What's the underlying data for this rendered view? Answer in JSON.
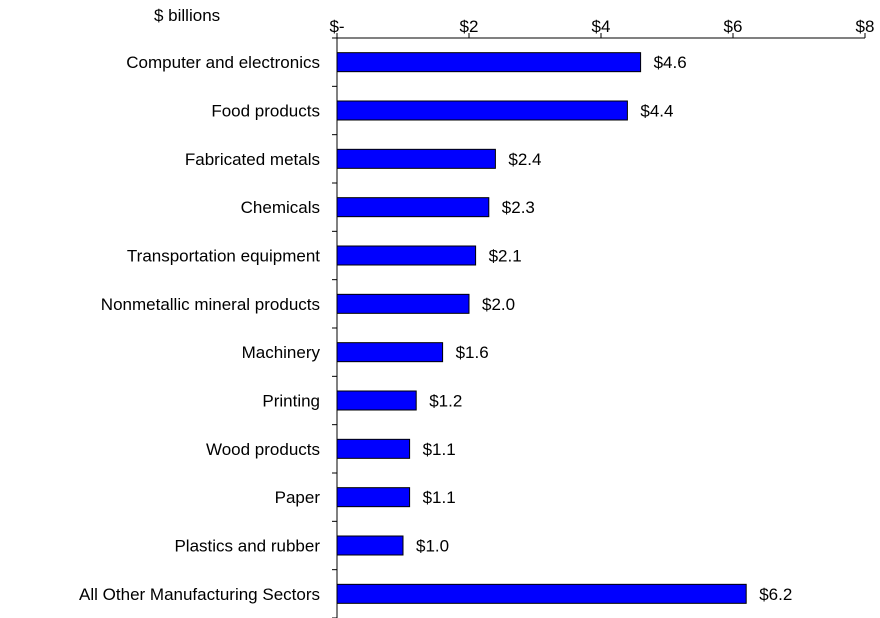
{
  "chart_data": {
    "type": "bar",
    "orientation": "horizontal",
    "unit_label": "$ billions",
    "categories": [
      "Computer and electronics",
      "Food products",
      "Fabricated metals",
      "Chemicals",
      "Transportation equipment",
      "Nonmetallic mineral products",
      "Machinery",
      "Printing",
      "Wood products",
      "Paper",
      "Plastics and rubber",
      "All Other Manufacturing Sectors"
    ],
    "values": [
      4.6,
      4.4,
      2.4,
      2.3,
      2.1,
      2.0,
      1.6,
      1.2,
      1.1,
      1.1,
      1.0,
      6.2
    ],
    "data_labels": [
      "$4.6",
      "$4.4",
      "$2.4",
      "$2.3",
      "$2.1",
      "$2.0",
      "$1.6",
      "$1.2",
      "$1.1",
      "$1.1",
      "$1.0",
      "$6.2"
    ],
    "x_ticks": [
      0,
      2,
      4,
      6,
      8
    ],
    "x_tick_labels": [
      "$-",
      "$2",
      "$4",
      "$6",
      "$8"
    ],
    "xlim": [
      0,
      8
    ],
    "axis_position": "top",
    "grid": false,
    "legend": "none",
    "bar_color": "#0000FF",
    "bar_edge_color": "#000000"
  }
}
